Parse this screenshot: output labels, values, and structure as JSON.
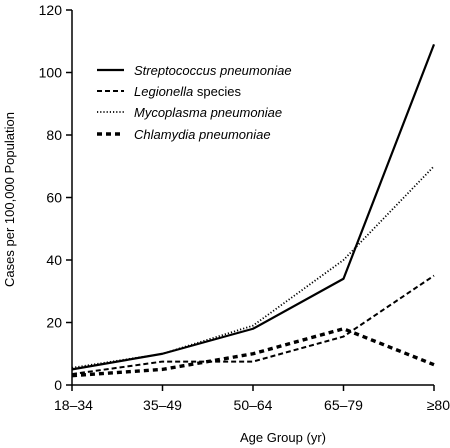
{
  "chart_data": {
    "type": "line",
    "xlabel": "Age Group (yr)",
    "ylabel": "Cases per 100,000 Population",
    "categories": [
      "18–34",
      "35–49",
      "50–64",
      "65–79",
      "≥80"
    ],
    "ylim": [
      0,
      120
    ],
    "yticks": [
      0,
      20,
      40,
      60,
      80,
      100,
      120
    ],
    "grid": false,
    "legend_position": "top-left",
    "series": [
      {
        "name": "Streptococcus pneumoniae",
        "name_parts": [
          {
            "text": "Streptococcus pneumoniae",
            "italic": true
          }
        ],
        "style": "solid",
        "values": [
          5,
          10,
          18,
          34,
          109
        ]
      },
      {
        "name": "Legionella species",
        "name_parts": [
          {
            "text": "Legionella",
            "italic": true
          },
          {
            "text": " species",
            "italic": false
          }
        ],
        "style": "dashed",
        "values": [
          3.5,
          7.5,
          7.5,
          15.5,
          35
        ]
      },
      {
        "name": "Mycoplasma pneumoniae",
        "name_parts": [
          {
            "text": "Mycoplasma pneumoniae",
            "italic": true
          }
        ],
        "style": "dotted",
        "values": [
          5.5,
          10,
          19,
          40,
          70
        ]
      },
      {
        "name": "Chlamydia pneumoniae",
        "name_parts": [
          {
            "text": "Chlamydia pneumoniae",
            "italic": true
          }
        ],
        "style": "bold-dashed",
        "values": [
          3,
          5,
          10,
          18,
          6.5
        ]
      }
    ]
  }
}
